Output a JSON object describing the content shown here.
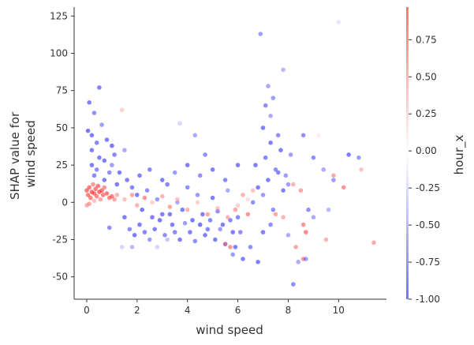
{
  "chart_data": {
    "type": "scatter",
    "xlabel": "wind speed",
    "ylabel_lines": [
      "SHAP value for",
      "wind speed"
    ],
    "xlim": [
      -0.5,
      11.9
    ],
    "ylim": [
      -65,
      131
    ],
    "xticks": [
      0,
      2,
      4,
      6,
      8,
      10
    ],
    "xtick_labels": [
      "0",
      "2",
      "4",
      "6",
      "8",
      "10"
    ],
    "yticks": [
      -50,
      -25,
      0,
      25,
      50,
      75,
      100,
      125
    ],
    "ytick_labels": [
      "-50",
      "-25",
      "0",
      "25",
      "50",
      "75",
      "100",
      "125"
    ],
    "colorbar": {
      "label": "hour_x",
      "range": [
        -1.0,
        0.97
      ],
      "ticks": [
        -1.0,
        -0.75,
        -0.5,
        -0.25,
        0.0,
        0.25,
        0.5,
        0.75
      ],
      "tick_labels": [
        "-1.00",
        "-0.75",
        "-0.50",
        "-0.25",
        "0.00",
        "0.25",
        "0.50",
        "0.75"
      ],
      "colors": [
        "#0000ff",
        "#ffffff",
        "#ff0000"
      ]
    },
    "grid": false,
    "points": [
      {
        "x": 0.0,
        "y": 8,
        "c": 0.9
      },
      {
        "x": 0.05,
        "y": 5,
        "c": 0.85
      },
      {
        "x": 0.1,
        "y": 10,
        "c": 0.9
      },
      {
        "x": 0.15,
        "y": 3,
        "c": 0.8
      },
      {
        "x": 0.2,
        "y": 7,
        "c": 0.95
      },
      {
        "x": 0.25,
        "y": 12,
        "c": 0.7
      },
      {
        "x": 0.3,
        "y": 6,
        "c": 0.9
      },
      {
        "x": 0.35,
        "y": 9,
        "c": 0.85
      },
      {
        "x": 0.4,
        "y": 4,
        "c": 0.8
      },
      {
        "x": 0.45,
        "y": 11,
        "c": 0.9
      },
      {
        "x": 0.5,
        "y": 7,
        "c": 0.95
      },
      {
        "x": 0.55,
        "y": 2,
        "c": 0.6
      },
      {
        "x": 0.6,
        "y": 8,
        "c": 0.9
      },
      {
        "x": 0.65,
        "y": 5,
        "c": 0.85
      },
      {
        "x": 0.7,
        "y": 10,
        "c": 0.7
      },
      {
        "x": 0.8,
        "y": 6,
        "c": 0.9
      },
      {
        "x": 0.9,
        "y": 3,
        "c": 0.8
      },
      {
        "x": 1.0,
        "y": 4,
        "c": 0.85
      },
      {
        "x": 1.1,
        "y": 2,
        "c": 0.6
      },
      {
        "x": 1.2,
        "y": 5,
        "c": 0.5
      },
      {
        "x": 0.0,
        "y": -2,
        "c": 0.5
      },
      {
        "x": 0.1,
        "y": -1,
        "c": 0.6
      },
      {
        "x": 0.3,
        "y": 1,
        "c": 0.4
      },
      {
        "x": 0.05,
        "y": 48,
        "c": -0.95
      },
      {
        "x": 0.1,
        "y": 67,
        "c": -0.9
      },
      {
        "x": 0.5,
        "y": 77,
        "c": -0.9
      },
      {
        "x": 0.3,
        "y": 60,
        "c": -0.8
      },
      {
        "x": 0.2,
        "y": 45,
        "c": -0.9
      },
      {
        "x": 0.4,
        "y": 40,
        "c": -0.85
      },
      {
        "x": 0.6,
        "y": 52,
        "c": -0.7
      },
      {
        "x": 0.8,
        "y": 42,
        "c": -0.9
      },
      {
        "x": 1.0,
        "y": 38,
        "c": -0.95
      },
      {
        "x": 0.2,
        "y": 25,
        "c": -0.9
      },
      {
        "x": 0.4,
        "y": 22,
        "c": -0.8
      },
      {
        "x": 0.7,
        "y": 28,
        "c": -0.9
      },
      {
        "x": 1.1,
        "y": 32,
        "c": -0.85
      },
      {
        "x": 1.3,
        "y": 20,
        "c": -0.9
      },
      {
        "x": 1.5,
        "y": 35,
        "c": -0.6
      },
      {
        "x": 1.4,
        "y": 62,
        "c": 0.3
      },
      {
        "x": 1.6,
        "y": 15,
        "c": -0.9
      },
      {
        "x": 1.8,
        "y": 10,
        "c": -0.85
      },
      {
        "x": 2.0,
        "y": 5,
        "c": -0.9
      },
      {
        "x": 2.2,
        "y": -5,
        "c": -0.95
      },
      {
        "x": 2.4,
        "y": 8,
        "c": -0.8
      },
      {
        "x": 2.6,
        "y": -10,
        "c": -0.9
      },
      {
        "x": 2.8,
        "y": 2,
        "c": -0.7
      },
      {
        "x": 3.0,
        "y": -8,
        "c": -0.9
      },
      {
        "x": 3.2,
        "y": 12,
        "c": -0.85
      },
      {
        "x": 3.4,
        "y": -15,
        "c": -0.9
      },
      {
        "x": 3.6,
        "y": 0,
        "c": -0.6
      },
      {
        "x": 3.8,
        "y": -5,
        "c": -0.9
      },
      {
        "x": 4.0,
        "y": 10,
        "c": -0.8
      },
      {
        "x": 4.2,
        "y": -12,
        "c": -0.95
      },
      {
        "x": 4.4,
        "y": 5,
        "c": -0.7
      },
      {
        "x": 4.6,
        "y": -8,
        "c": -0.9
      },
      {
        "x": 4.8,
        "y": -18,
        "c": -0.85
      },
      {
        "x": 5.0,
        "y": 3,
        "c": -0.9
      },
      {
        "x": 5.2,
        "y": -6,
        "c": -0.8
      },
      {
        "x": 5.4,
        "y": -15,
        "c": -0.9
      },
      {
        "x": 5.6,
        "y": 8,
        "c": -0.6
      },
      {
        "x": 5.8,
        "y": -20,
        "c": -0.9
      },
      {
        "x": 6.0,
        "y": -10,
        "c": -0.85
      },
      {
        "x": 1.5,
        "y": -10,
        "c": -0.9
      },
      {
        "x": 1.7,
        "y": -18,
        "c": -0.8
      },
      {
        "x": 1.9,
        "y": -22,
        "c": -0.95
      },
      {
        "x": 2.1,
        "y": -15,
        "c": -0.9
      },
      {
        "x": 2.3,
        "y": -20,
        "c": -0.85
      },
      {
        "x": 2.5,
        "y": -25,
        "c": -0.7
      },
      {
        "x": 2.7,
        "y": -18,
        "c": -0.9
      },
      {
        "x": 2.9,
        "y": -12,
        "c": -0.95
      },
      {
        "x": 3.1,
        "y": -22,
        "c": -0.8
      },
      {
        "x": 3.3,
        "y": -8,
        "c": -0.9
      },
      {
        "x": 3.5,
        "y": -20,
        "c": -0.85
      },
      {
        "x": 3.7,
        "y": -25,
        "c": -0.9
      },
      {
        "x": 3.9,
        "y": -14,
        "c": -0.7
      },
      {
        "x": 4.1,
        "y": -20,
        "c": -0.9
      },
      {
        "x": 4.3,
        "y": -26,
        "c": -0.8
      },
      {
        "x": 4.5,
        "y": -15,
        "c": -0.95
      },
      {
        "x": 4.7,
        "y": -22,
        "c": -0.9
      },
      {
        "x": 4.9,
        "y": -12,
        "c": -0.85
      },
      {
        "x": 5.1,
        "y": -25,
        "c": -0.9
      },
      {
        "x": 5.3,
        "y": -18,
        "c": -0.7
      },
      {
        "x": 5.5,
        "y": -28,
        "c": -0.9
      },
      {
        "x": 5.7,
        "y": -12,
        "c": -0.85
      },
      {
        "x": 5.9,
        "y": -30,
        "c": -0.9
      },
      {
        "x": 6.1,
        "y": -20,
        "c": -0.8
      },
      {
        "x": 1.5,
        "y": 2,
        "c": 0.4
      },
      {
        "x": 1.8,
        "y": 5,
        "c": 0.6
      },
      {
        "x": 2.0,
        "y": -2,
        "c": 0.5
      },
      {
        "x": 2.3,
        "y": 3,
        "c": 0.7
      },
      {
        "x": 2.6,
        "y": 0,
        "c": 0.3
      },
      {
        "x": 3.0,
        "y": 4,
        "c": 0.5
      },
      {
        "x": 3.3,
        "y": -3,
        "c": 0.6
      },
      {
        "x": 3.6,
        "y": 2,
        "c": 0.4
      },
      {
        "x": 4.0,
        "y": -5,
        "c": 0.5
      },
      {
        "x": 4.4,
        "y": 0,
        "c": 0.3
      },
      {
        "x": 4.8,
        "y": -8,
        "c": 0.6
      },
      {
        "x": 5.2,
        "y": -4,
        "c": 0.4
      },
      {
        "x": 5.6,
        "y": -10,
        "c": 0.5
      },
      {
        "x": 6.0,
        "y": -2,
        "c": 0.3
      },
      {
        "x": 6.4,
        "y": 2,
        "c": 0.2
      },
      {
        "x": 2.1,
        "y": 18,
        "c": -0.9
      },
      {
        "x": 2.5,
        "y": 22,
        "c": -0.85
      },
      {
        "x": 3.0,
        "y": 15,
        "c": -0.9
      },
      {
        "x": 3.5,
        "y": 20,
        "c": -0.7
      },
      {
        "x": 4.0,
        "y": 25,
        "c": -0.9
      },
      {
        "x": 4.5,
        "y": 18,
        "c": -0.8
      },
      {
        "x": 5.0,
        "y": 22,
        "c": -0.9
      },
      {
        "x": 5.5,
        "y": 15,
        "c": -0.85
      },
      {
        "x": 6.0,
        "y": 25,
        "c": -0.9
      },
      {
        "x": 4.3,
        "y": 45,
        "c": -0.6
      },
      {
        "x": 4.7,
        "y": 32,
        "c": -0.8
      },
      {
        "x": 3.7,
        "y": 53,
        "c": -0.3
      },
      {
        "x": 6.2,
        "y": -38,
        "c": -0.9
      },
      {
        "x": 6.5,
        "y": -30,
        "c": -0.8
      },
      {
        "x": 5.8,
        "y": -35,
        "c": -0.7
      },
      {
        "x": 6.8,
        "y": -40,
        "c": -0.9
      },
      {
        "x": 6.6,
        "y": 0,
        "c": -0.8
      },
      {
        "x": 6.8,
        "y": 10,
        "c": -0.9
      },
      {
        "x": 7.0,
        "y": 5,
        "c": -0.7
      },
      {
        "x": 7.2,
        "y": 15,
        "c": -0.9
      },
      {
        "x": 7.4,
        "y": -5,
        "c": -0.8
      },
      {
        "x": 7.6,
        "y": 20,
        "c": -0.85
      },
      {
        "x": 7.8,
        "y": 8,
        "c": -0.9
      },
      {
        "x": 8.0,
        "y": 12,
        "c": -0.7
      },
      {
        "x": 6.7,
        "y": 25,
        "c": -0.9
      },
      {
        "x": 7.1,
        "y": 30,
        "c": -0.85
      },
      {
        "x": 7.3,
        "y": 40,
        "c": -0.9
      },
      {
        "x": 7.5,
        "y": 22,
        "c": -0.8
      },
      {
        "x": 7.7,
        "y": 35,
        "c": -0.9
      },
      {
        "x": 7.9,
        "y": 18,
        "c": -0.7
      },
      {
        "x": 6.9,
        "y": 113,
        "c": -0.7
      },
      {
        "x": 7.2,
        "y": 78,
        "c": -0.6
      },
      {
        "x": 7.4,
        "y": 70,
        "c": -0.7
      },
      {
        "x": 7.8,
        "y": 89,
        "c": -0.5
      },
      {
        "x": 7.1,
        "y": 65,
        "c": -0.8
      },
      {
        "x": 7.3,
        "y": 58,
        "c": -0.6
      },
      {
        "x": 7.0,
        "y": 50,
        "c": -0.9
      },
      {
        "x": 7.6,
        "y": 45,
        "c": -0.8
      },
      {
        "x": 8.1,
        "y": 32,
        "c": -0.7
      },
      {
        "x": 10.0,
        "y": 121,
        "c": -0.2
      },
      {
        "x": 9.0,
        "y": 30,
        "c": -0.8
      },
      {
        "x": 9.4,
        "y": 22,
        "c": -0.6
      },
      {
        "x": 9.8,
        "y": 15,
        "c": -0.7
      },
      {
        "x": 10.4,
        "y": 32,
        "c": -0.9
      },
      {
        "x": 10.8,
        "y": 30,
        "c": -0.7
      },
      {
        "x": 8.6,
        "y": 45,
        "c": -0.8
      },
      {
        "x": 9.2,
        "y": 45,
        "c": 0.1
      },
      {
        "x": 8.2,
        "y": 12,
        "c": 0.5
      },
      {
        "x": 8.5,
        "y": 8,
        "c": 0.6
      },
      {
        "x": 8.8,
        "y": -5,
        "c": -0.8
      },
      {
        "x": 9.0,
        "y": -10,
        "c": -0.6
      },
      {
        "x": 8.6,
        "y": -15,
        "c": 0.7
      },
      {
        "x": 8.7,
        "y": -20,
        "c": 0.8
      },
      {
        "x": 8.3,
        "y": -30,
        "c": 0.6
      },
      {
        "x": 8.6,
        "y": -38,
        "c": 0.7
      },
      {
        "x": 8.4,
        "y": -40,
        "c": -0.6
      },
      {
        "x": 8.7,
        "y": -38,
        "c": -0.7
      },
      {
        "x": 8.2,
        "y": -55,
        "c": -0.8
      },
      {
        "x": 7.8,
        "y": -10,
        "c": 0.5
      },
      {
        "x": 7.5,
        "y": -8,
        "c": 0.6
      },
      {
        "x": 9.5,
        "y": -25,
        "c": 0.5
      },
      {
        "x": 9.8,
        "y": 18,
        "c": 0.6
      },
      {
        "x": 10.2,
        "y": 10,
        "c": 0.7
      },
      {
        "x": 10.9,
        "y": 22,
        "c": 0.4
      },
      {
        "x": 11.4,
        "y": -27,
        "c": 0.6
      },
      {
        "x": 9.6,
        "y": -5,
        "c": -0.5
      },
      {
        "x": 5.9,
        "y": -5,
        "c": 0.6
      },
      {
        "x": 6.2,
        "y": 5,
        "c": 0.5
      },
      {
        "x": 6.4,
        "y": -8,
        "c": 0.7
      },
      {
        "x": 6.6,
        "y": 8,
        "c": 0.4
      },
      {
        "x": 5.5,
        "y": -28,
        "c": 0.6
      },
      {
        "x": 5.7,
        "y": -30,
        "c": 0.7
      },
      {
        "x": 7.0,
        "y": -20,
        "c": -0.9
      },
      {
        "x": 7.3,
        "y": -15,
        "c": -0.8
      },
      {
        "x": 8.0,
        "y": -22,
        "c": -0.6
      },
      {
        "x": 3.2,
        "y": -25,
        "c": -0.4
      },
      {
        "x": 2.8,
        "y": -30,
        "c": -0.3
      },
      {
        "x": 1.4,
        "y": -30,
        "c": -0.3
      },
      {
        "x": 1.8,
        "y": -30,
        "c": -0.5
      },
      {
        "x": 0.9,
        "y": -17,
        "c": -0.8
      },
      {
        "x": 0.7,
        "y": 15,
        "c": -0.9
      },
      {
        "x": 0.3,
        "y": 18,
        "c": -0.85
      },
      {
        "x": 0.5,
        "y": 30,
        "c": -0.9
      },
      {
        "x": 0.9,
        "y": 20,
        "c": -0.8
      },
      {
        "x": 1.2,
        "y": 12,
        "c": -0.9
      },
      {
        "x": 1.0,
        "y": 25,
        "c": -0.7
      },
      {
        "x": 0.2,
        "y": 35,
        "c": -0.9
      }
    ]
  }
}
